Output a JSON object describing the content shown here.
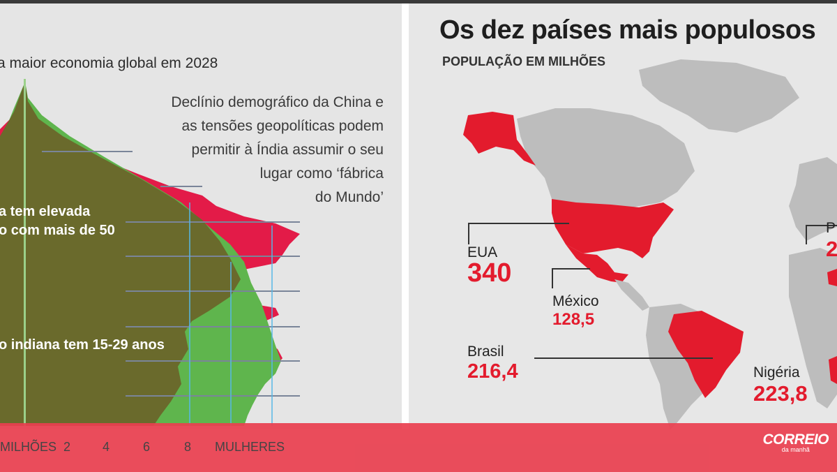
{
  "left": {
    "subtitle": "a maior economia global em 2028",
    "note": "Declínio demográfico da China e\nas tensões geopolíticas  podem\npermitir à Índia assumir o seu\nlugar como ‘fábrica\ndo Mundo’",
    "label_1": "a tem elevada",
    "label_2": "o com mais de 50",
    "label_3": "o indiana tem 15-29 anos",
    "axis_labels": {
      "milhoes": "MILHÕES",
      "t2": "2",
      "t4": "4",
      "t6": "6",
      "t8": "8",
      "mulheres": "MULHERES"
    },
    "colors": {
      "china": "#e31b48",
      "india": "#5fb54d",
      "overlap": "#6a6a2c"
    }
  },
  "map": {
    "title": "Os dez países mais populosos",
    "subtitle": "POPULAÇÃO EM MILHÕES",
    "countries": [
      {
        "name": "EUA",
        "value": "340"
      },
      {
        "name": "México",
        "value": "128,5"
      },
      {
        "name": "Brasil",
        "value": "216,4"
      },
      {
        "name": "Nigéria",
        "value": "223,8"
      },
      {
        "name": "P",
        "value": "2"
      }
    ],
    "colors": {
      "highlight": "#e31b2d",
      "land": "#bdbdbd",
      "water": "#e7e7e7"
    }
  },
  "footer": {
    "brand": "CORREIO",
    "tagline": "da manhã",
    "color": "#e94050"
  }
}
